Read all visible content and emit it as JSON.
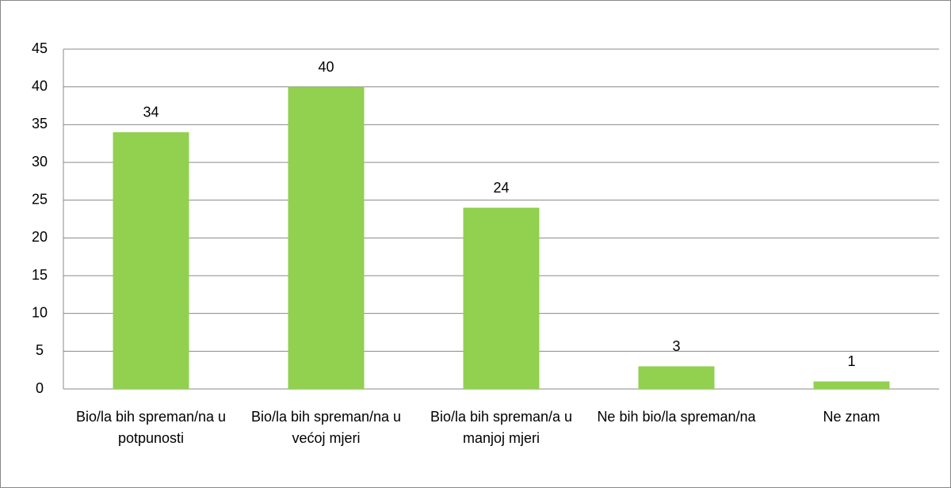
{
  "chart_data": {
    "type": "bar",
    "categories": [
      "Bio/la bih spreman/na u potpunosti",
      "Bio/la bih spreman/na u većoj mjeri",
      "Bio/la bih spreman/a u manjoj mjeri",
      "Ne bih bio/la spreman/na",
      "Ne znam"
    ],
    "values": [
      34,
      40,
      24,
      3,
      1
    ],
    "color": "#92d050",
    "ylim": [
      0,
      45
    ],
    "yticks": [
      0,
      5,
      10,
      15,
      20,
      25,
      30,
      35,
      40,
      45
    ],
    "grid": true
  }
}
